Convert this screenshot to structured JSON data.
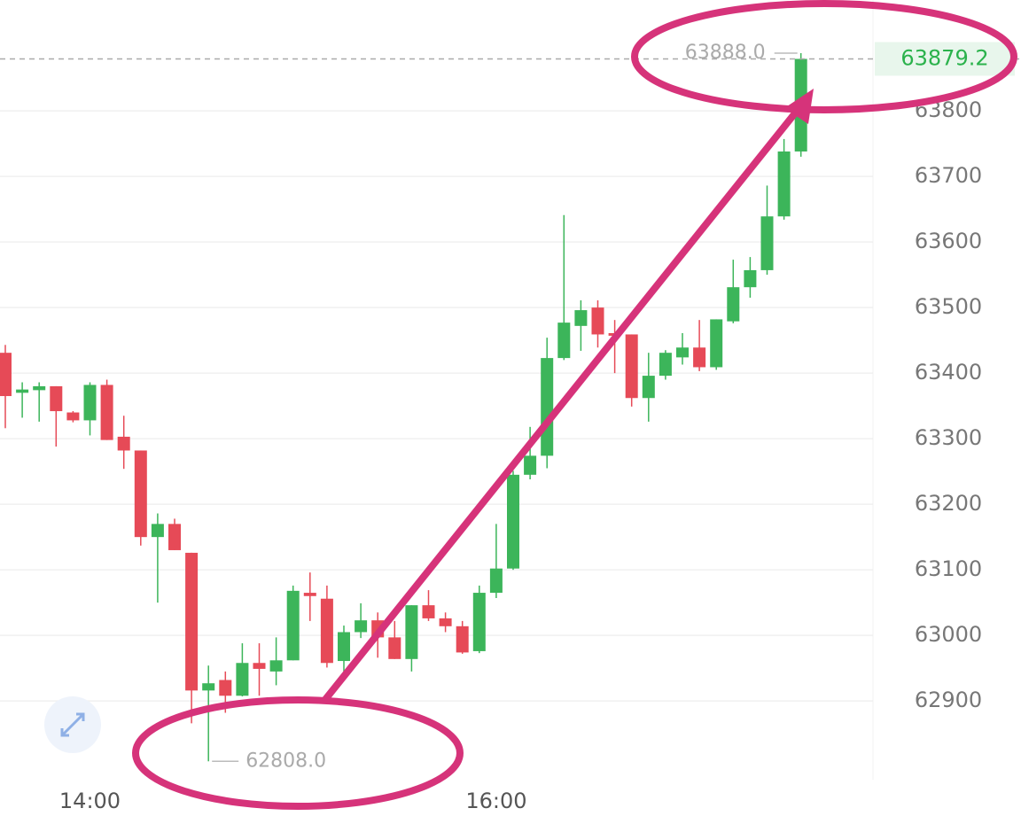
{
  "chart_data": {
    "type": "candlestick",
    "categories": [
      null,
      null,
      null,
      null,
      null,
      "14:00",
      null,
      null,
      null,
      null,
      null,
      null,
      null,
      null,
      null,
      null,
      null,
      null,
      null,
      null,
      null,
      null,
      null,
      null,
      null,
      null,
      null,
      null,
      null,
      "16:00",
      null,
      null,
      null,
      null,
      null,
      null,
      null,
      null,
      null,
      null,
      null,
      null,
      null,
      null,
      null,
      null,
      null,
      null
    ],
    "open": [
      63431,
      63370,
      63374,
      63380,
      63340,
      63328,
      63382,
      63303,
      63282,
      63150,
      63170,
      63126,
      62916,
      62932,
      62908,
      62958,
      62945,
      62962,
      63065,
      63056,
      62961,
      63005,
      63023,
      62997,
      62964,
      63046,
      63026,
      63014,
      62976,
      63065,
      63102,
      63245,
      63274,
      63423,
      63472,
      63500,
      63461,
      63459,
      63362,
      63396,
      63424,
      63439,
      63409,
      63479,
      63531,
      63557,
      63639,
      63738
    ],
    "high": [
      63443,
      63386,
      63386,
      63380,
      63342,
      63386,
      63390,
      63335,
      63282,
      63186,
      63178,
      63126,
      62954,
      62945,
      62988,
      62988,
      62997,
      63076,
      63096,
      63076,
      63015,
      63049,
      63035,
      63022,
      63046,
      63069,
      63035,
      63022,
      63076,
      63170,
      63251,
      63318,
      63454,
      63641,
      63511,
      63511,
      63481,
      63459,
      63431,
      63435,
      63461,
      63481,
      63482,
      63573,
      63577,
      63686,
      63757,
      63888
    ],
    "low": [
      63316,
      63332,
      63326,
      63288,
      63325,
      63305,
      63298,
      63254,
      63137,
      63050,
      63130,
      62866,
      62808,
      62882,
      62907,
      62908,
      62924,
      62962,
      63022,
      62951,
      62945,
      62996,
      62966,
      62964,
      62945,
      63022,
      63005,
      62972,
      62973,
      63057,
      63100,
      63238,
      63255,
      63420,
      63434,
      63439,
      63400,
      63349,
      63326,
      63390,
      63413,
      63403,
      63405,
      63476,
      63515,
      63550,
      63634,
      63730
    ],
    "close": [
      63365,
      63375,
      63380,
      63342,
      63328,
      63382,
      63298,
      63282,
      63150,
      63170,
      63130,
      62916,
      62927,
      62908,
      62958,
      62949,
      62962,
      63068,
      63060,
      62958,
      63005,
      63023,
      62997,
      62964,
      63046,
      63026,
      63014,
      62974,
      63065,
      63102,
      63245,
      63274,
      63423,
      63477,
      63496,
      63459,
      63457,
      63362,
      63396,
      63431,
      63439,
      63409,
      63482,
      63531,
      63557,
      63639,
      63738,
      63879.2
    ],
    "up_color": "#3cb55a",
    "down_color": "#e64a57",
    "ylim": [
      62780,
      63969
    ],
    "yticks": [
      62900,
      63000,
      63100,
      63200,
      63300,
      63400,
      63500,
      63600,
      63700,
      63800
    ],
    "grid": true,
    "last_price": 63879.2,
    "max_label": {
      "value": 63888,
      "label": "63888.0"
    },
    "min_label": {
      "value": 62808,
      "label": "62808.0"
    }
  }
}
